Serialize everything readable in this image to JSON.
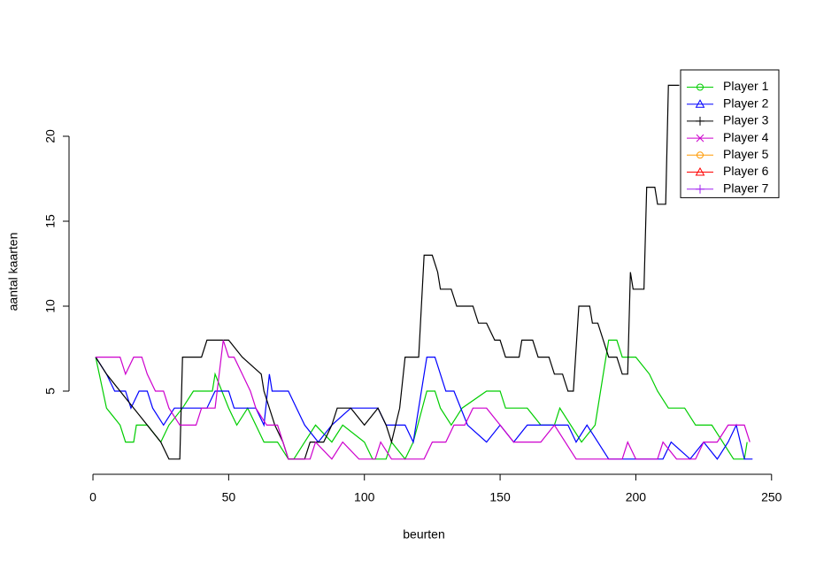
{
  "chart_data": {
    "type": "line",
    "x_label": "beurten",
    "y_label": "aantal kaarten",
    "xlim": [
      -8.68,
      252.68
    ],
    "ylim": [
      0.12,
      23.88
    ],
    "xticks": [
      0,
      50,
      100,
      150,
      200,
      250
    ],
    "yticks": [
      5,
      10,
      15,
      20
    ],
    "legend": "top-right",
    "series": [
      {
        "name": "Player 1",
        "color": "#00cd00",
        "marker": "circle",
        "x": [
          1,
          5,
          10,
          12,
          15,
          16,
          20,
          25,
          28,
          33,
          37,
          44,
          45,
          50,
          53,
          57,
          60,
          63,
          68,
          72,
          74,
          78,
          82,
          88,
          92,
          100,
          103,
          108,
          110,
          115,
          118,
          123,
          126,
          128,
          132,
          136,
          145,
          150,
          152,
          160,
          165,
          170,
          172,
          180,
          185,
          190,
          193,
          195,
          200,
          205,
          208,
          212,
          218,
          222,
          228,
          232,
          236,
          240,
          241
        ],
        "values": [
          7,
          4,
          3,
          2,
          2,
          3,
          3,
          2,
          3,
          4,
          5,
          5,
          6,
          4,
          3,
          4,
          3,
          2,
          2,
          1,
          1,
          2,
          3,
          2,
          3,
          2,
          1,
          1,
          2,
          1,
          2,
          5,
          5,
          4,
          3,
          4,
          5,
          5,
          4,
          4,
          3,
          3,
          4,
          2,
          3,
          8,
          8,
          7,
          7,
          6,
          5,
          4,
          4,
          3,
          3,
          2,
          1,
          1,
          2
        ]
      },
      {
        "name": "Player 2",
        "color": "#0000ff",
        "marker": "triangle",
        "x": [
          1,
          5,
          8,
          12,
          14,
          17,
          20,
          22,
          26,
          30,
          35,
          42,
          45,
          50,
          52,
          60,
          63,
          65,
          66,
          72,
          75,
          78,
          83,
          88,
          95,
          105,
          108,
          115,
          118,
          123,
          126,
          128,
          130,
          133,
          138,
          145,
          150,
          155,
          160,
          175,
          178,
          182,
          186,
          190,
          210,
          213,
          220,
          225,
          230,
          234,
          237,
          240,
          243
        ],
        "values": [
          7,
          6,
          5,
          5,
          4,
          5,
          5,
          4,
          3,
          4,
          4,
          4,
          5,
          5,
          4,
          4,
          3,
          6,
          5,
          5,
          4,
          3,
          2,
          3,
          4,
          4,
          3,
          3,
          2,
          7,
          7,
          6,
          5,
          5,
          3,
          2,
          3,
          2,
          3,
          3,
          2,
          3,
          2,
          1,
          1,
          2,
          1,
          2,
          1,
          2,
          3,
          1,
          1
        ]
      },
      {
        "name": "Player 3",
        "color": "#000000",
        "marker": "plus",
        "x": [
          1,
          5,
          10,
          15,
          20,
          25,
          28,
          32,
          33,
          40,
          42,
          50,
          55,
          62,
          63,
          67,
          70,
          72,
          78,
          80,
          85,
          88,
          90,
          95,
          100,
          105,
          108,
          110,
          113,
          115,
          120,
          122,
          125,
          127,
          128,
          132,
          134,
          140,
          142,
          145,
          148,
          150,
          152,
          157,
          158,
          162,
          164,
          168,
          170,
          173,
          175,
          177,
          179,
          183,
          184,
          186,
          188,
          190,
          193,
          195,
          197,
          198,
          199,
          203,
          204,
          207,
          208,
          211,
          212,
          216
        ],
        "values": [
          7,
          6,
          5,
          4,
          3,
          2,
          1,
          1,
          7,
          7,
          8,
          8,
          7,
          6,
          5,
          3,
          2,
          1,
          1,
          2,
          2,
          3,
          4,
          4,
          3,
          4,
          3,
          2,
          4,
          7,
          7,
          13,
          13,
          12,
          11,
          11,
          10,
          10,
          9,
          9,
          8,
          8,
          7,
          7,
          8,
          8,
          7,
          7,
          6,
          6,
          5,
          5,
          10,
          10,
          9,
          9,
          8,
          7,
          7,
          6,
          6,
          12,
          11,
          11,
          17,
          17,
          16,
          16,
          23,
          23
        ]
      },
      {
        "name": "Player 4",
        "color": "#cd00cd",
        "marker": "cross",
        "x": [
          1,
          10,
          12,
          15,
          18,
          20,
          23,
          26,
          28,
          32,
          38,
          40,
          45,
          48,
          50,
          52,
          55,
          58,
          60,
          64,
          68,
          70,
          72,
          80,
          82,
          88,
          92,
          98,
          104,
          106,
          110,
          122,
          125,
          130,
          133,
          137,
          140,
          145,
          150,
          155,
          165,
          170,
          174,
          178,
          195,
          197,
          200,
          208,
          210,
          215,
          222,
          225,
          230,
          234,
          240,
          242
        ],
        "values": [
          7,
          7,
          6,
          7,
          7,
          6,
          5,
          5,
          4,
          3,
          3,
          4,
          4,
          8,
          7,
          7,
          6,
          5,
          4,
          3,
          3,
          2,
          1,
          1,
          2,
          1,
          2,
          1,
          1,
          2,
          1,
          1,
          2,
          2,
          3,
          3,
          4,
          4,
          3,
          2,
          2,
          3,
          2,
          1,
          1,
          2,
          1,
          1,
          2,
          1,
          1,
          2,
          2,
          3,
          3,
          2
        ]
      },
      {
        "name": "Player 5",
        "color": "#ff9900",
        "marker": "circle",
        "x": [],
        "values": []
      },
      {
        "name": "Player 6",
        "color": "#ff0000",
        "marker": "triangle",
        "x": [],
        "values": []
      },
      {
        "name": "Player 7",
        "color": "#a020f0",
        "marker": "plus",
        "x": [],
        "values": []
      }
    ]
  }
}
